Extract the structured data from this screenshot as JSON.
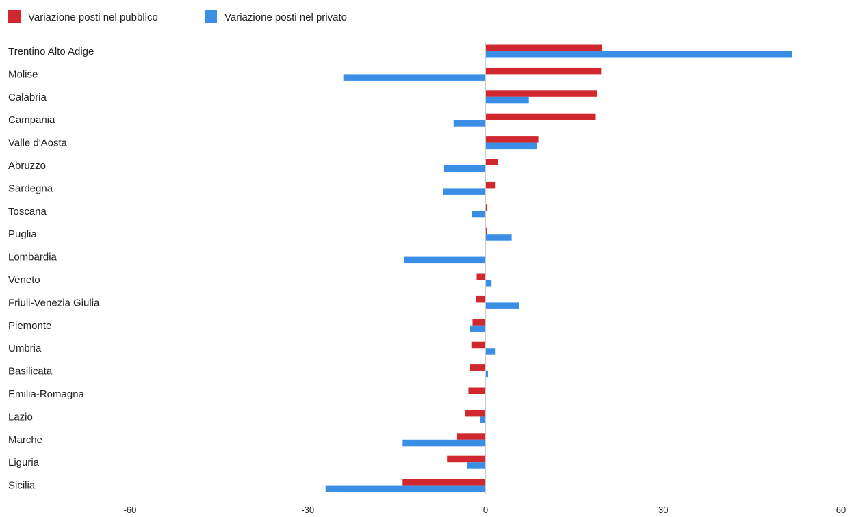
{
  "chart_data": {
    "type": "bar",
    "orientation": "horizontal",
    "legend_position": "top-left",
    "grid": false,
    "xlim": [
      -60,
      60
    ],
    "x_ticks": [
      "-60",
      "-30",
      "0",
      "30",
      "60"
    ],
    "x_tick_values": [
      -60,
      -30,
      0,
      30,
      60
    ],
    "categories": [
      "Trentino Alto Adige",
      "Molise",
      "Calabria",
      "Campania",
      "Valle d'Aosta",
      "Abruzzo",
      "Sardegna",
      "Toscana",
      "Puglia",
      "Lombardia",
      "Veneto",
      "Friuli-Venezia Giulia",
      "Piemonte",
      "Umbria",
      "Basilicata",
      "Emilia-Romagna",
      "Lazio",
      "Marche",
      "Liguria",
      "Sicilia"
    ],
    "series": [
      {
        "name": "Variazione posti nel pubblico",
        "color": "#d0282e",
        "values": [
          19.7,
          19.5,
          18.8,
          18.6,
          8.9,
          2.1,
          1.7,
          0.3,
          0.2,
          0,
          -1.5,
          -1.6,
          -2.2,
          -2.4,
          -2.6,
          -2.9,
          -3.4,
          -4.8,
          -6.5,
          -14.0
        ]
      },
      {
        "name": "Variazione posti nel privato",
        "color": "#3a8ee6",
        "values": [
          51.8,
          -24.0,
          7.3,
          -5.4,
          8.6,
          -7.0,
          -7.2,
          -2.3,
          4.4,
          -13.8,
          1.0,
          5.7,
          -2.6,
          1.7,
          0.4,
          0,
          -0.9,
          -14.0,
          -3.1,
          -27.0
        ]
      }
    ]
  }
}
